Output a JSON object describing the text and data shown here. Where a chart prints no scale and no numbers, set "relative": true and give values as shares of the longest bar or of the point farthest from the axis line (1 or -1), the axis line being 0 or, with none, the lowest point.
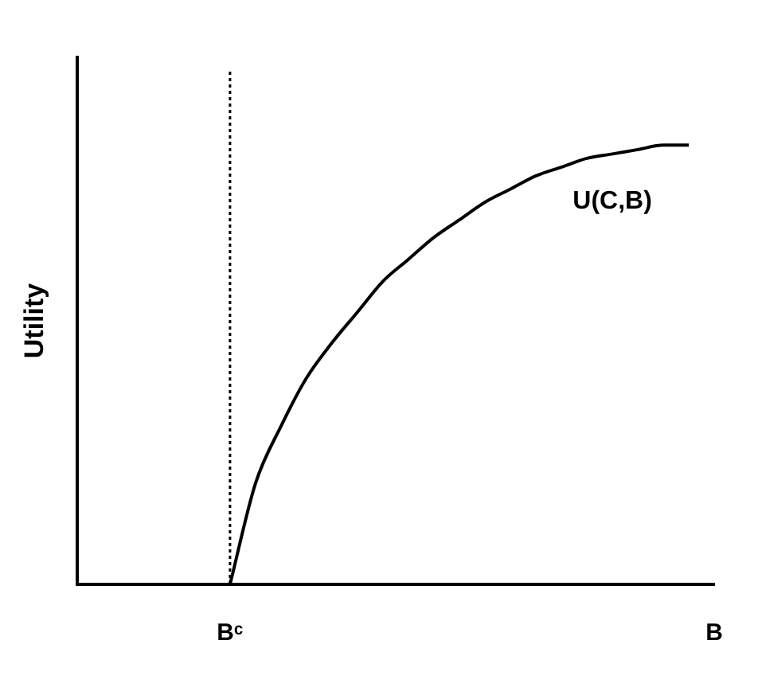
{
  "chart_data": {
    "type": "line",
    "relative": true,
    "ylabel": "Utility",
    "categories": [
      null,
      null,
      null,
      null,
      null,
      null,
      "Bᶜ",
      null,
      null,
      null,
      null,
      null,
      null,
      null,
      null,
      null,
      null,
      null,
      null,
      null,
      null,
      null,
      null,
      null,
      null,
      "B"
    ],
    "series": [
      {
        "name": "U(C,B)",
        "color": "#000000",
        "values": [
          null,
          null,
          null,
          null,
          null,
          null,
          0,
          0.23,
          0.36,
          0.47,
          0.55,
          0.62,
          0.69,
          0.74,
          0.79,
          0.83,
          0.87,
          0.9,
          0.93,
          0.95,
          0.97,
          0.98,
          0.99,
          1,
          1,
          null
        ]
      }
    ],
    "ref_lines": [
      {
        "axis": "x",
        "value": "Bᶜ",
        "color": "#000000",
        "line_style": "dotted"
      }
    ],
    "grid": false,
    "legend": false,
    "tick_labels": "x",
    "marker": "none",
    "line_style": "solid"
  }
}
